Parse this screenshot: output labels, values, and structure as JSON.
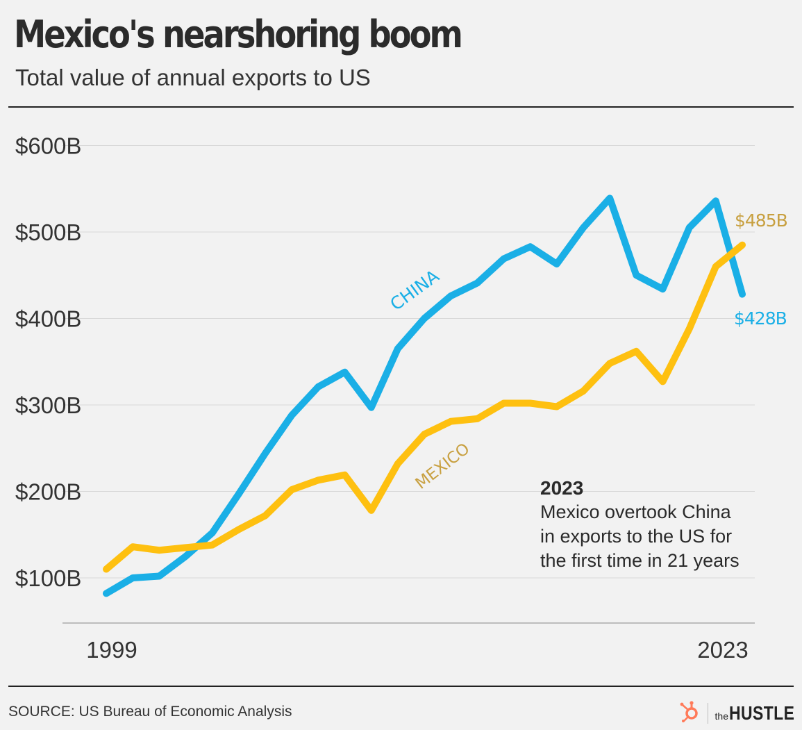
{
  "header": {
    "title": "Mexico's nearshoring boom",
    "subtitle": "Total value of annual exports to US"
  },
  "footer": {
    "source": "SOURCE: US Bureau of Economic Analysis",
    "brand_prefix": "the",
    "brand_name": "HUSTLE",
    "logo_icon": "hubspot-sprocket-icon"
  },
  "colors": {
    "china": "#1aafe6",
    "mexico": "#fec010",
    "mexico_label": "#c8a040",
    "grid": "#d8d8d8",
    "axis": "#bdbdbd"
  },
  "chart_data": {
    "type": "line",
    "title": "Mexico's nearshoring boom",
    "subtitle": "Total value of annual exports to US",
    "x": [
      1999,
      2000,
      2001,
      2002,
      2003,
      2004,
      2005,
      2006,
      2007,
      2008,
      2009,
      2010,
      2011,
      2012,
      2013,
      2014,
      2015,
      2016,
      2017,
      2018,
      2019,
      2020,
      2021,
      2022,
      2023
    ],
    "x_tick_labels": [
      "1999",
      "2023"
    ],
    "y_tick_labels": [
      "$100B",
      "$200B",
      "$300B",
      "$400B",
      "$500B",
      "$600B"
    ],
    "y_ticks": [
      100,
      200,
      300,
      400,
      500,
      600
    ],
    "ylim": [
      50,
      630
    ],
    "xlabel": "",
    "ylabel": "",
    "grid": true,
    "series": [
      {
        "name": "CHINA",
        "label": "CHINA",
        "end_label": "$428B",
        "values": [
          82,
          100,
          102,
          125,
          152,
          197,
          244,
          288,
          321,
          338,
          297,
          365,
          400,
          426,
          441,
          469,
          483,
          463,
          505,
          539,
          450,
          434,
          505,
          536,
          428
        ]
      },
      {
        "name": "MEXICO",
        "label": "MEXICO",
        "end_label": "$485B",
        "values": [
          110,
          136,
          132,
          135,
          138,
          156,
          172,
          202,
          213,
          219,
          178,
          232,
          266,
          281,
          284,
          302,
          302,
          298,
          316,
          348,
          362,
          327,
          388,
          460,
          485
        ]
      }
    ],
    "annotation": {
      "heading": "2023",
      "text_lines": [
        "Mexico overtook China",
        "in exports to the US for",
        "the first time in 21 years"
      ]
    }
  }
}
